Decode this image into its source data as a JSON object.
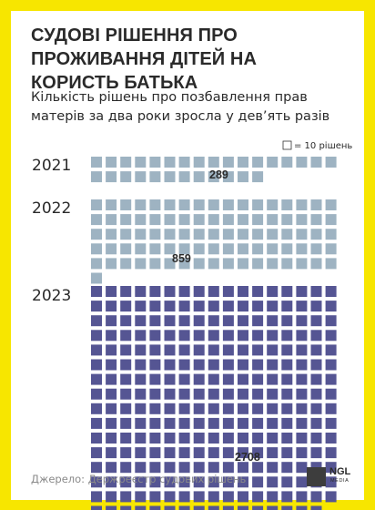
{
  "title": "СУДОВІ РІШЕННЯ ПРО ПРОЖИВАННЯ ДІТЕЙ НА КОРИСТЬ БАТЬКА",
  "subtitle": "Кількість рішень про позбавлення прав матерів за два роки зросла у дев’ять разів",
  "source": "Джерело: Держреєстр судових рішень",
  "logo": {
    "main": "NGL",
    "sub": "MEDIA"
  },
  "colors": {
    "frame": "#f7e600",
    "past_years": "#9eb3c2",
    "latest_year": "#555593",
    "text": "#2a2a2a"
  },
  "chart_data": {
    "type": "waffle",
    "unit_label": "= 10 рішень",
    "unit_value": 10,
    "categories": [
      "2021",
      "2022",
      "2023"
    ],
    "values": [
      289,
      859,
      2708
    ],
    "value_labels": [
      "289",
      "859",
      "2708"
    ],
    "squares_per_row": 17
  }
}
